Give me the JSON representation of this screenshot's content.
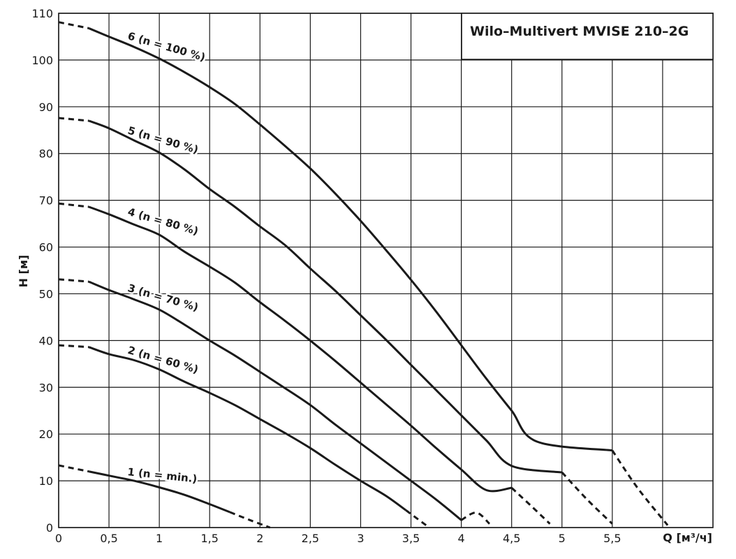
{
  "chart_data": {
    "type": "line",
    "title": "Wilo–Multivert MVISE 210–2G",
    "xlabel": "Q [м³/ч]",
    "ylabel": "H [м]",
    "xlim": [
      0,
      6.5
    ],
    "ylim": [
      0,
      110
    ],
    "grid": true,
    "x_ticks": [
      {
        "value": 0,
        "label": "0"
      },
      {
        "value": 0.5,
        "label": "0,5"
      },
      {
        "value": 1,
        "label": "1"
      },
      {
        "value": 1.5,
        "label": "1,5"
      },
      {
        "value": 2,
        "label": "2"
      },
      {
        "value": 2.5,
        "label": "2,5"
      },
      {
        "value": 3,
        "label": "3"
      },
      {
        "value": 3.5,
        "label": "3,5"
      },
      {
        "value": 4,
        "label": "4"
      },
      {
        "value": 4.5,
        "label": "4,5"
      },
      {
        "value": 5,
        "label": "5"
      },
      {
        "value": 5.5,
        "label": "5,5"
      }
    ],
    "y_ticks": [
      {
        "value": 0,
        "label": "0"
      },
      {
        "value": 10,
        "label": "10"
      },
      {
        "value": 20,
        "label": "20"
      },
      {
        "value": 30,
        "label": "30"
      },
      {
        "value": 40,
        "label": "40"
      },
      {
        "value": 50,
        "label": "50"
      },
      {
        "value": 60,
        "label": "60"
      },
      {
        "value": 70,
        "label": "70"
      },
      {
        "value": 80,
        "label": "80"
      },
      {
        "value": 90,
        "label": "90"
      },
      {
        "value": 100,
        "label": "100"
      },
      {
        "value": 110,
        "label": "110"
      }
    ],
    "series": [
      {
        "name": "1 (n = min.)",
        "dash_start": [
          [
            0,
            13.3
          ],
          [
            0.3,
            12.0
          ]
        ],
        "solid": [
          [
            0.3,
            12.0
          ],
          [
            0.5,
            11.1
          ],
          [
            0.75,
            10.0
          ],
          [
            1.0,
            8.6
          ],
          [
            1.25,
            7.0
          ],
          [
            1.5,
            5.0
          ],
          [
            1.7,
            3.3
          ]
        ],
        "dash_end": [
          [
            1.7,
            3.3
          ],
          [
            1.9,
            1.6
          ],
          [
            2.1,
            0
          ]
        ]
      },
      {
        "name": "2 (n = 60 %)",
        "dash_start": [
          [
            0,
            39.0
          ],
          [
            0.3,
            38.6
          ]
        ],
        "solid": [
          [
            0.3,
            38.6
          ],
          [
            0.5,
            37.1
          ],
          [
            0.75,
            35.8
          ],
          [
            1.0,
            33.8
          ],
          [
            1.25,
            31.2
          ],
          [
            1.5,
            28.8
          ],
          [
            1.75,
            26.2
          ],
          [
            2.0,
            23.2
          ],
          [
            2.25,
            20.2
          ],
          [
            2.5,
            17.0
          ],
          [
            2.75,
            13.4
          ],
          [
            3.0,
            10.0
          ],
          [
            3.25,
            6.8
          ],
          [
            3.45,
            3.7
          ]
        ],
        "dash_end": [
          [
            3.45,
            3.7
          ],
          [
            3.55,
            2.1
          ],
          [
            3.65,
            0.5
          ]
        ]
      },
      {
        "name": "3 (n = 70 %)",
        "dash_start": [
          [
            0,
            53.1
          ],
          [
            0.3,
            52.6
          ]
        ],
        "solid": [
          [
            0.3,
            52.6
          ],
          [
            0.5,
            50.8
          ],
          [
            0.75,
            48.8
          ],
          [
            1.0,
            46.6
          ],
          [
            1.25,
            43.4
          ],
          [
            1.5,
            40.0
          ],
          [
            1.75,
            36.8
          ],
          [
            2.0,
            33.3
          ],
          [
            2.25,
            29.8
          ],
          [
            2.5,
            26.2
          ],
          [
            2.75,
            22.0
          ],
          [
            3.0,
            18.0
          ],
          [
            3.25,
            14.0
          ],
          [
            3.5,
            10.0
          ],
          [
            3.75,
            6.0
          ],
          [
            4.0,
            1.6
          ],
          [
            4.0,
            5.4
          ]
        ],
        "dash_end": [
          [
            4.0,
            5.4
          ],
          [
            4.15,
            3.2
          ],
          [
            4.28,
            0.8
          ]
        ]
      },
      {
        "name": "4 (n = 80 %)",
        "dash_start": [
          [
            0,
            69.3
          ],
          [
            0.3,
            68.6
          ]
        ],
        "solid": [
          [
            0.3,
            68.6
          ],
          [
            0.5,
            67.0
          ],
          [
            0.75,
            64.8
          ],
          [
            1.0,
            62.6
          ],
          [
            1.25,
            59.0
          ],
          [
            1.5,
            55.8
          ],
          [
            1.75,
            52.4
          ],
          [
            2.0,
            48.2
          ],
          [
            2.25,
            44.2
          ],
          [
            2.5,
            40.0
          ],
          [
            2.75,
            35.6
          ],
          [
            3.0,
            31.0
          ],
          [
            3.25,
            26.4
          ],
          [
            3.5,
            21.8
          ],
          [
            3.75,
            17.0
          ],
          [
            4.0,
            12.4
          ],
          [
            4.25,
            8.0
          ],
          [
            4.5,
            8.5
          ]
        ],
        "dash_end": [
          [
            4.5,
            8.5
          ],
          [
            4.7,
            4.5
          ],
          [
            4.88,
            0.8
          ]
        ]
      },
      {
        "name": "5 (n = 90 %)",
        "dash_start": [
          [
            0,
            87.6
          ],
          [
            0.3,
            87.0
          ]
        ],
        "solid": [
          [
            0.3,
            87.0
          ],
          [
            0.5,
            85.4
          ],
          [
            0.75,
            82.8
          ],
          [
            1.0,
            80.2
          ],
          [
            1.25,
            76.6
          ],
          [
            1.5,
            72.4
          ],
          [
            1.75,
            68.6
          ],
          [
            2.0,
            64.4
          ],
          [
            2.25,
            60.4
          ],
          [
            2.5,
            55.4
          ],
          [
            2.75,
            50.6
          ],
          [
            3.0,
            45.4
          ],
          [
            3.25,
            40.2
          ],
          [
            3.5,
            34.8
          ],
          [
            3.75,
            29.4
          ],
          [
            4.0,
            24.0
          ],
          [
            4.25,
            18.6
          ],
          [
            4.5,
            13.2
          ],
          [
            5.0,
            11.8
          ]
        ],
        "dash_end": [
          [
            5.0,
            11.8
          ],
          [
            5.25,
            6.0
          ],
          [
            5.5,
            0.8
          ]
        ]
      },
      {
        "name": "6 (n = 100 %)",
        "dash_start": [
          [
            0,
            108.1
          ],
          [
            0.3,
            106.8
          ]
        ],
        "solid": [
          [
            0.3,
            106.8
          ],
          [
            0.5,
            105.0
          ],
          [
            0.75,
            102.8
          ],
          [
            1.0,
            100.3
          ],
          [
            1.25,
            97.4
          ],
          [
            1.5,
            94.2
          ],
          [
            1.75,
            90.6
          ],
          [
            2.0,
            86.2
          ],
          [
            2.25,
            81.6
          ],
          [
            2.5,
            76.8
          ],
          [
            2.75,
            71.4
          ],
          [
            3.0,
            65.6
          ],
          [
            3.25,
            59.4
          ],
          [
            3.5,
            53.0
          ],
          [
            3.75,
            46.2
          ],
          [
            4.0,
            39.0
          ],
          [
            4.25,
            31.8
          ],
          [
            4.5,
            25.0
          ],
          [
            4.75,
            18.4
          ],
          [
            5.5,
            16.5
          ]
        ],
        "dash_end": [
          [
            5.5,
            16.5
          ],
          [
            5.75,
            8.5
          ],
          [
            6.05,
            0.5
          ]
        ]
      }
    ],
    "series_labels": [
      "6 (n = 100 %)",
      "5 (n = 90 %)",
      "4 (n = 80 %)",
      "3 (n = 70 %)",
      "2 (n = 60 %)",
      "1 (n = min.)"
    ]
  }
}
